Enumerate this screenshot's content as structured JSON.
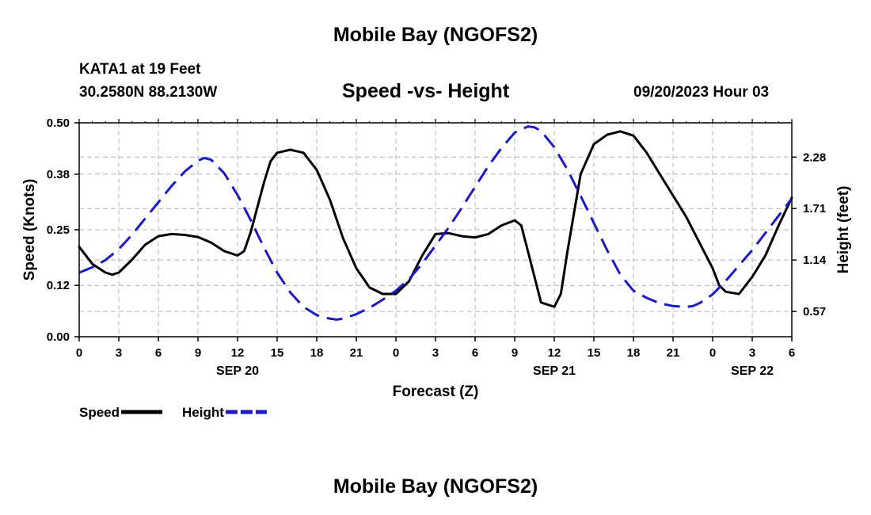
{
  "header": {
    "title": "Mobile Bay (NGOFS2)",
    "station": "KATA1 at 19 Feet",
    "coords": "30.2580N  88.2130W",
    "timestamp": "09/20/2023 Hour 03"
  },
  "footer": {
    "title": "Mobile Bay (NGOFS2)"
  },
  "chart_data": {
    "type": "line",
    "title": "Speed -vs- Height",
    "xlabel": "Forecast (Z)",
    "ylabel": "Speed (Knots)",
    "y2label": "Height (feet)",
    "x_unit": "hours from 00Z SEP 20",
    "xlim": [
      0,
      54
    ],
    "ylim": [
      0,
      0.5
    ],
    "y2lim": [
      0.29,
      2.66
    ],
    "x_ticks": [
      0,
      3,
      6,
      9,
      12,
      15,
      18,
      21,
      24,
      27,
      30,
      33,
      36,
      39,
      42,
      45,
      48,
      51,
      54
    ],
    "x_tick_labels": [
      "0",
      "3",
      "6",
      "9",
      "12",
      "15",
      "18",
      "21",
      "0",
      "3",
      "6",
      "9",
      "12",
      "15",
      "18",
      "21",
      "0",
      "3",
      "6"
    ],
    "y_ticks": [
      0.0,
      0.12,
      0.25,
      0.38,
      0.5
    ],
    "y_tick_labels": [
      "0.00",
      "0.12",
      "0.25",
      "0.38",
      "0.50"
    ],
    "y2_ticks": [
      0.57,
      1.14,
      1.71,
      2.28
    ],
    "y2_tick_labels": [
      "0.57",
      "1.14",
      "1.71",
      "2.28"
    ],
    "date_labels": [
      {
        "x": 12,
        "label": "SEP 20"
      },
      {
        "x": 36,
        "label": "SEP 21"
      },
      {
        "x": 51,
        "label": "SEP 22"
      }
    ],
    "grid": true,
    "legend_position": "bottom-left",
    "series": [
      {
        "name": "Speed",
        "axis": "left",
        "color": "#000000",
        "style": "solid",
        "x": [
          0,
          1,
          2,
          2.5,
          3,
          4,
          5,
          6,
          7,
          8,
          9,
          10,
          11,
          12,
          12.5,
          13,
          14,
          14.5,
          15,
          16,
          17,
          18,
          19,
          20,
          21,
          22,
          23,
          24,
          25,
          26,
          27,
          28,
          29,
          30,
          31,
          32,
          33,
          33.5,
          34,
          35,
          36,
          36.5,
          37,
          38,
          39,
          40,
          41,
          42,
          43,
          44,
          45,
          46,
          47,
          48,
          48.5,
          49,
          50,
          51,
          52,
          53,
          54
        ],
        "values": [
          0.21,
          0.17,
          0.15,
          0.145,
          0.15,
          0.18,
          0.215,
          0.235,
          0.24,
          0.238,
          0.233,
          0.22,
          0.2,
          0.19,
          0.2,
          0.245,
          0.36,
          0.41,
          0.43,
          0.437,
          0.43,
          0.39,
          0.32,
          0.23,
          0.16,
          0.115,
          0.1,
          0.1,
          0.13,
          0.19,
          0.24,
          0.242,
          0.235,
          0.232,
          0.24,
          0.26,
          0.272,
          0.26,
          0.2,
          0.08,
          0.07,
          0.1,
          0.2,
          0.38,
          0.45,
          0.472,
          0.48,
          0.47,
          0.43,
          0.38,
          0.33,
          0.28,
          0.22,
          0.16,
          0.12,
          0.105,
          0.1,
          0.14,
          0.19,
          0.26,
          0.325
        ]
      },
      {
        "name": "Height",
        "axis": "right",
        "color": "#1a1ac8",
        "style": "dashed",
        "x": [
          0,
          1,
          2,
          3,
          4,
          5,
          6,
          7,
          8,
          9,
          9.5,
          10,
          11,
          12,
          13,
          14,
          15,
          16,
          17,
          18,
          19,
          19.5,
          20,
          21,
          22,
          23,
          24,
          25,
          26,
          27,
          28,
          29,
          30,
          31,
          32,
          33,
          34,
          34.5,
          35,
          36,
          37,
          38,
          39,
          40,
          41,
          42,
          43,
          44,
          45,
          46,
          46.5,
          47,
          48,
          49,
          50,
          51,
          52,
          53,
          54
        ],
        "values": [
          1.0,
          1.06,
          1.14,
          1.26,
          1.42,
          1.6,
          1.78,
          1.96,
          2.12,
          2.24,
          2.27,
          2.25,
          2.1,
          1.86,
          1.58,
          1.28,
          1.0,
          0.78,
          0.62,
          0.53,
          0.49,
          0.48,
          0.49,
          0.54,
          0.61,
          0.7,
          0.8,
          0.93,
          1.1,
          1.3,
          1.5,
          1.72,
          1.95,
          2.18,
          2.38,
          2.55,
          2.62,
          2.61,
          2.57,
          2.39,
          2.14,
          1.85,
          1.55,
          1.25,
          0.98,
          0.8,
          0.72,
          0.66,
          0.63,
          0.62,
          0.63,
          0.66,
          0.76,
          0.91,
          1.08,
          1.25,
          1.44,
          1.63,
          1.82
        ]
      }
    ]
  }
}
